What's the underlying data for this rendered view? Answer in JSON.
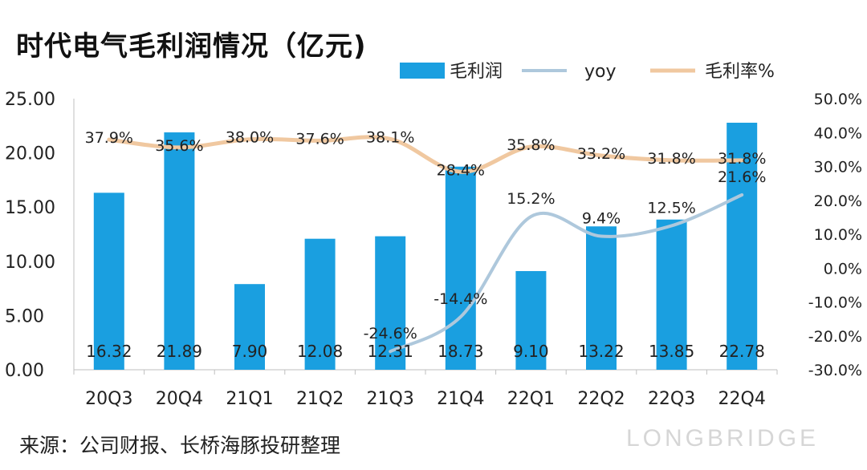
{
  "chart_data": {
    "type": "bar",
    "title": "时代电气毛利润情况（亿元)",
    "categories": [
      "20Q3",
      "20Q4",
      "21Q1",
      "21Q2",
      "21Q3",
      "21Q4",
      "22Q1",
      "22Q2",
      "22Q3",
      "22Q4"
    ],
    "series": [
      {
        "name": "毛利润",
        "type": "bar",
        "axis": "left",
        "color": "#1a9fe0",
        "values": [
          16.32,
          21.89,
          7.9,
          12.08,
          12.31,
          18.73,
          9.1,
          13.22,
          13.85,
          22.78
        ],
        "labels": [
          "16.32",
          "21.89",
          "7.90",
          "12.08",
          "12.31",
          "18.73",
          "9.10",
          "13.22",
          "13.85",
          "22.78"
        ]
      },
      {
        "name": "yoy",
        "type": "line",
        "axis": "right",
        "color": "#aec8dc",
        "values": [
          null,
          null,
          null,
          null,
          -24.6,
          -14.4,
          15.2,
          9.4,
          12.5,
          21.6
        ],
        "labels": [
          "",
          "",
          "",
          "",
          "-24.6%",
          "-14.4%",
          "15.2%",
          "9.4%",
          "12.5%",
          "21.6%"
        ]
      },
      {
        "name": "毛利率%",
        "type": "line",
        "axis": "right",
        "color": "#f0c8a0",
        "values": [
          37.9,
          35.6,
          38.0,
          37.6,
          38.1,
          28.4,
          35.8,
          33.2,
          31.8,
          31.8
        ],
        "labels": [
          "37.9%",
          "35.6%",
          "38.0%",
          "37.6%",
          "38.1%",
          "28.4%",
          "35.8%",
          "33.2%",
          "31.8%",
          "31.8%"
        ]
      }
    ],
    "y_left": {
      "min": 0,
      "max": 25,
      "ticks": [
        0,
        5,
        10,
        15,
        20,
        25
      ],
      "tick_labels": [
        "0.00",
        "5.00",
        "10.00",
        "15.00",
        "20.00",
        "25.00"
      ]
    },
    "y_right": {
      "min": -30,
      "max": 50,
      "ticks": [
        -30,
        -20,
        -10,
        0,
        10,
        20,
        30,
        40,
        50
      ],
      "tick_labels": [
        "-30.0%",
        "-20.0%",
        "-10.0%",
        "0.0%",
        "10.0%",
        "20.0%",
        "30.0%",
        "40.0%",
        "50.0%"
      ]
    },
    "legend_position": "top-right",
    "grid": false
  },
  "source": "来源：公司财报、长桥海豚投研整理",
  "watermark": "LONGBRIDGE"
}
